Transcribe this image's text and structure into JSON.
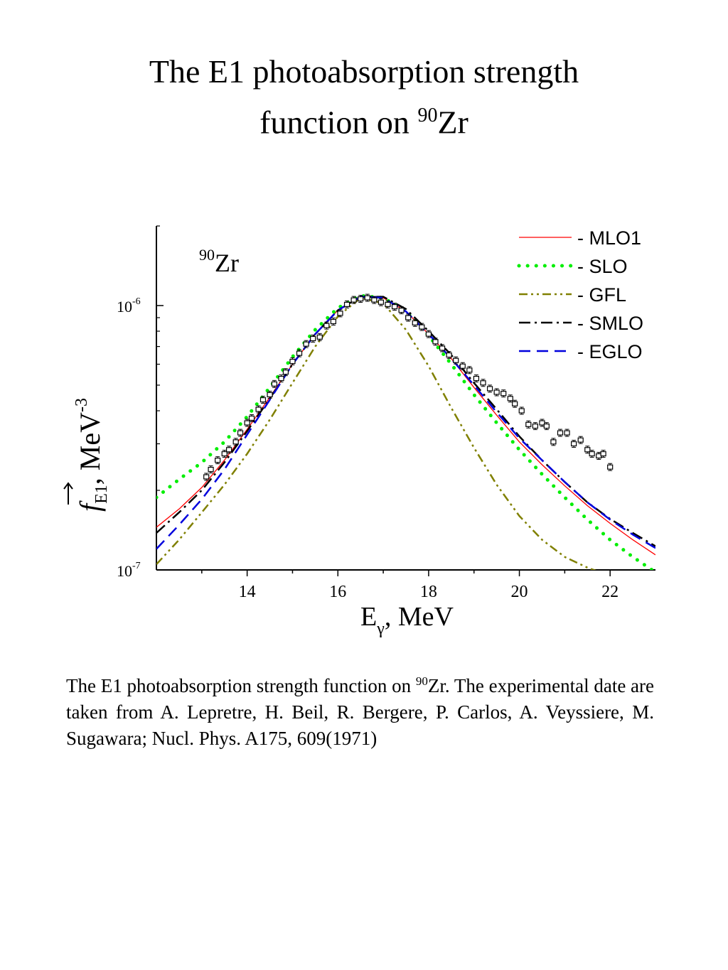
{
  "title": {
    "line1": "The E1 photoabsorption strength",
    "line2_pre": "function on ",
    "sup": "90",
    "line2_post": "Zr"
  },
  "caption": {
    "pre": "The E1 photoabsorption strength function on ",
    "sup": "90",
    "post": "Zr. The experimental date are taken from A. Lepretre, H. Beil, R. Bergere, P. Carlos, A. Veyssiere, M. Sugawara; Nucl. Phys. A175, 609(1971)"
  },
  "chart_data": {
    "type": "line",
    "annotation": {
      "sup": "90",
      "text": "Zr"
    },
    "xlabel": {
      "main": "E",
      "sub": "γ",
      "rest": ", MeV"
    },
    "ylabel": {
      "main": "f",
      "sub": "E1",
      "rest": ", MeV",
      "sup": "-3"
    },
    "xlim": [
      12,
      23
    ],
    "ylim": [
      1e-07,
      2e-06
    ],
    "yscale": "log",
    "xticks": [
      14,
      16,
      18,
      20,
      22
    ],
    "xtick_labels": [
      "14",
      "16",
      "18",
      "20",
      "22"
    ],
    "yticks": [
      {
        "value": 1e-06,
        "base": "10",
        "exp": "-6"
      },
      {
        "value": 1e-07,
        "base": "10",
        "exp": "-7"
      }
    ],
    "legend_position": "top-right",
    "series": [
      {
        "name": "- MLO1",
        "color": "#ff0000",
        "style": "solid",
        "x": [
          12,
          12.5,
          13,
          13.5,
          14,
          14.5,
          15,
          15.5,
          16,
          16.5,
          17,
          17.5,
          18,
          18.5,
          19,
          19.5,
          20,
          20.5,
          21,
          21.5,
          22,
          22.5,
          23
        ],
        "y": [
          1.45e-07,
          1.7e-07,
          2.05e-07,
          2.6e-07,
          3.4e-07,
          4.5e-07,
          6e-07,
          7.8e-07,
          9.6e-07,
          1.08e-06,
          1.07e-06,
          9.5e-07,
          7.8e-07,
          6.3e-07,
          4.9e-07,
          3.85e-07,
          3.05e-07,
          2.5e-07,
          2.08e-07,
          1.75e-07,
          1.5e-07,
          1.3e-07,
          1.14e-07
        ]
      },
      {
        "name": "- SLO",
        "color": "#00ee00",
        "style": "dotted",
        "x": [
          12,
          12.5,
          13,
          13.5,
          14,
          14.5,
          15,
          15.5,
          16,
          16.5,
          17,
          17.5,
          18,
          18.5,
          19,
          19.5,
          20,
          20.5,
          21,
          21.5,
          22,
          22.5,
          23
        ],
        "y": [
          1.88e-07,
          2.2e-07,
          2.55e-07,
          3.05e-07,
          3.8e-07,
          4.9e-07,
          6.4e-07,
          8.1e-07,
          9.8e-07,
          1.09e-06,
          1.07e-06,
          9.5e-07,
          7.7e-07,
          6e-07,
          4.6e-07,
          3.6e-07,
          2.85e-07,
          2.3e-07,
          1.88e-07,
          1.55e-07,
          1.3e-07,
          1.12e-07,
          9.8e-08
        ]
      },
      {
        "name": "- GFL",
        "color": "#808000",
        "style": "dashdotdot",
        "x": [
          12,
          12.5,
          13,
          13.5,
          14,
          14.5,
          15,
          15.5,
          16,
          16.5,
          17,
          17.5,
          18,
          18.5,
          19,
          19.5,
          20,
          20.5,
          21,
          21.5,
          22
        ],
        "y": [
          1.05e-07,
          1.3e-07,
          1.65e-07,
          2.1e-07,
          2.75e-07,
          3.7e-07,
          5.1e-07,
          7e-07,
          9.1e-07,
          1.07e-06,
          1.02e-06,
          8.1e-07,
          5.9e-07,
          4.1e-07,
          2.9e-07,
          2.1e-07,
          1.6e-07,
          1.3e-07,
          1.12e-07,
          1.02e-07,
          9.5e-08
        ]
      },
      {
        "name": "- SMLO",
        "color": "#000000",
        "style": "dashdot",
        "x": [
          12,
          12.5,
          13,
          13.5,
          14,
          14.5,
          15,
          15.5,
          16,
          16.5,
          17,
          17.5,
          18,
          18.5,
          19,
          19.5,
          20,
          20.5,
          21,
          21.5,
          22,
          22.5,
          23
        ],
        "y": [
          1.38e-07,
          1.65e-07,
          2e-07,
          2.55e-07,
          3.35e-07,
          4.45e-07,
          6e-07,
          7.8e-07,
          9.6e-07,
          1.08e-06,
          1.08e-06,
          9.7e-07,
          8e-07,
          6.5e-07,
          5.1e-07,
          4.05e-07,
          3.2e-07,
          2.6e-07,
          2.15e-07,
          1.8e-07,
          1.56e-07,
          1.38e-07,
          1.23e-07
        ]
      },
      {
        "name": "- EGLO",
        "color": "#0000dd",
        "style": "dashed",
        "x": [
          12,
          12.5,
          13,
          13.5,
          14,
          14.5,
          15,
          15.5,
          16,
          16.5,
          17,
          17.5,
          18,
          18.5,
          19,
          19.5,
          20,
          20.5,
          21,
          21.5,
          22,
          22.5,
          23
        ],
        "y": [
          1.2e-07,
          1.48e-07,
          1.85e-07,
          2.4e-07,
          3.25e-07,
          4.4e-07,
          6e-07,
          7.8e-07,
          9.6e-07,
          1.08e-06,
          1.07e-06,
          9.5e-07,
          7.8e-07,
          6.3e-07,
          5e-07,
          3.95e-07,
          3.15e-07,
          2.6e-07,
          2.15e-07,
          1.8e-07,
          1.55e-07,
          1.36e-07,
          1.21e-07
        ]
      }
    ],
    "experimental": {
      "x": [
        13.1,
        13.2,
        13.35,
        13.5,
        13.6,
        13.75,
        13.85,
        14.0,
        14.1,
        14.25,
        14.35,
        14.5,
        14.6,
        14.75,
        14.85,
        15.0,
        15.15,
        15.3,
        15.45,
        15.6,
        15.75,
        15.9,
        16.05,
        16.2,
        16.35,
        16.5,
        16.65,
        16.8,
        16.95,
        17.1,
        17.25,
        17.4,
        17.55,
        17.7,
        17.85,
        18.0,
        18.15,
        18.3,
        18.45,
        18.6,
        18.75,
        18.9,
        19.05,
        19.2,
        19.35,
        19.5,
        19.65,
        19.8,
        19.9,
        20.05,
        20.2,
        20.35,
        20.5,
        20.6,
        20.75,
        20.9,
        21.05,
        21.2,
        21.35,
        21.5,
        21.6,
        21.75,
        21.85,
        22.0
      ],
      "y": [
        2.25e-07,
        2.4e-07,
        2.6e-07,
        2.75e-07,
        2.85e-07,
        3.05e-07,
        3.3e-07,
        3.6e-07,
        3.75e-07,
        4.05e-07,
        4.4e-07,
        4.6e-07,
        5.05e-07,
        5.3e-07,
        5.6e-07,
        6.15e-07,
        6.6e-07,
        7.15e-07,
        7.5e-07,
        7.6e-07,
        8.4e-07,
        8.7e-07,
        9.35e-07,
        1.01e-06,
        1.05e-06,
        1.06e-06,
        1.07e-06,
        1.05e-06,
        1.03e-06,
        1.01e-06,
        9.9e-07,
        9.6e-07,
        9e-07,
        8.6e-07,
        8.3e-07,
        7.8e-07,
        7.3e-07,
        6.9e-07,
        6.5e-07,
        6.2e-07,
        5.9e-07,
        5.7e-07,
        5.3e-07,
        5.1e-07,
        4.85e-07,
        4.7e-07,
        4.65e-07,
        4.45e-07,
        4.25e-07,
        4e-07,
        3.55e-07,
        3.5e-07,
        3.6e-07,
        3.5e-07,
        3.05e-07,
        3.3e-07,
        3.3e-07,
        3e-07,
        3.1e-07,
        2.85e-07,
        2.75e-07,
        2.7e-07,
        2.75e-07,
        2.45e-07
      ]
    }
  }
}
